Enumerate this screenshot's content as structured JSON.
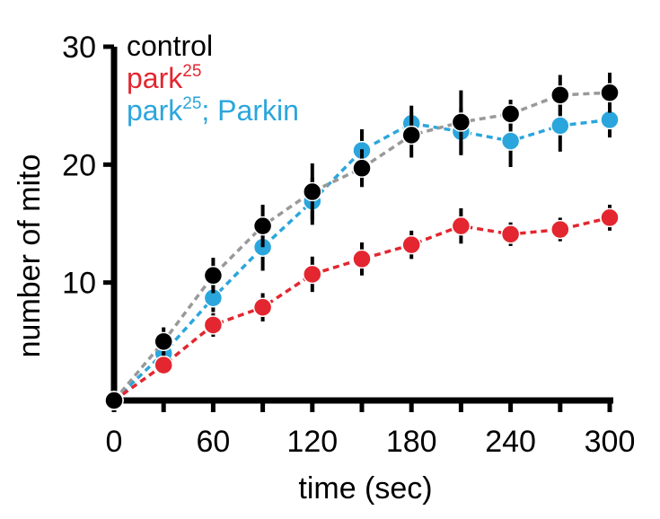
{
  "chart_data": {
    "type": "line",
    "title": "",
    "xlabel": "time (sec)",
    "ylabel": "number of mito",
    "xlim": [
      0,
      300
    ],
    "ylim": [
      0,
      30
    ],
    "xticks": [
      0,
      60,
      120,
      180,
      240,
      300
    ],
    "yticks": [
      10,
      20,
      30
    ],
    "x": [
      0,
      30,
      60,
      90,
      120,
      150,
      180,
      210,
      240,
      270,
      300
    ],
    "legend_position": "top-left",
    "series": [
      {
        "name": "park²⁵; Parkin",
        "label_main": "park",
        "label_sup": "25",
        "label_tail": "; Parkin",
        "marker_color": "#2ba6dc",
        "line_color": "#2ba6dc",
        "values": [
          0,
          4.0,
          8.7,
          13.0,
          16.9,
          21.2,
          23.5,
          22.8,
          22.0,
          23.3,
          23.8
        ],
        "errors": [
          0,
          0.6,
          1.2,
          2.0,
          2.0,
          1.8,
          1.5,
          2.0,
          2.2,
          2.2,
          1.5
        ]
      },
      {
        "name": "park²⁵",
        "label_main": "park",
        "label_sup": "25",
        "label_tail": "",
        "marker_color": "#e3262f",
        "line_color": "#e3262f",
        "values": [
          0,
          3.0,
          6.4,
          7.9,
          10.7,
          12.0,
          13.2,
          14.8,
          14.1,
          14.5,
          15.5
        ],
        "errors": [
          0,
          0.5,
          1.0,
          1.2,
          1.5,
          1.4,
          1.2,
          1.5,
          1.0,
          1.0,
          1.1
        ]
      },
      {
        "name": "control",
        "label_main": "control",
        "label_sup": "",
        "label_tail": "",
        "marker_color": "#000000",
        "line_color": "#999999",
        "values": [
          0,
          5.0,
          10.6,
          14.8,
          17.7,
          19.7,
          22.5,
          23.6,
          24.3,
          25.9,
          26.1
        ],
        "errors": [
          0,
          1.2,
          1.5,
          1.8,
          2.4,
          1.6,
          1.9,
          2.7,
          1.2,
          1.7,
          1.7
        ]
      }
    ]
  }
}
